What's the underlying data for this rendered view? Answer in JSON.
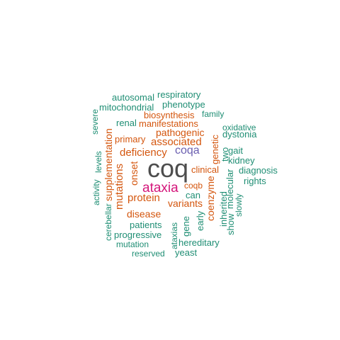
{
  "wordcloud": {
    "colors": {
      "gray": "#4d4d4d",
      "pink": "#d4157a",
      "purple": "#6b5fb0",
      "orange": "#d4560e",
      "teal": "#1f8e74"
    },
    "words": [
      {
        "text": "coq",
        "color": "gray",
        "orientation": "horizontal"
      },
      {
        "text": "ataxia",
        "color": "pink",
        "orientation": "horizontal"
      },
      {
        "text": "coqa",
        "color": "purple",
        "orientation": "horizontal"
      },
      {
        "text": "associated",
        "color": "orange",
        "orientation": "horizontal"
      },
      {
        "text": "deficiency",
        "color": "orange",
        "orientation": "horizontal"
      },
      {
        "text": "pathogenic",
        "color": "orange",
        "orientation": "horizontal"
      },
      {
        "text": "manifestations",
        "color": "orange",
        "orientation": "horizontal"
      },
      {
        "text": "biosynthesis",
        "color": "orange",
        "orientation": "horizontal"
      },
      {
        "text": "primary",
        "color": "orange",
        "orientation": "horizontal"
      },
      {
        "text": "protein",
        "color": "orange",
        "orientation": "horizontal"
      },
      {
        "text": "variants",
        "color": "orange",
        "orientation": "horizontal"
      },
      {
        "text": "disease",
        "color": "orange",
        "orientation": "horizontal"
      },
      {
        "text": "clinical",
        "color": "orange",
        "orientation": "horizontal"
      },
      {
        "text": "coqb",
        "color": "orange",
        "orientation": "horizontal"
      },
      {
        "text": "supplementation",
        "color": "orange",
        "orientation": "vertical"
      },
      {
        "text": "mutations",
        "color": "orange",
        "orientation": "vertical"
      },
      {
        "text": "onset",
        "color": "orange",
        "orientation": "vertical"
      },
      {
        "text": "genetic",
        "color": "orange",
        "orientation": "vertical"
      },
      {
        "text": "coenzyme",
        "color": "orange",
        "orientation": "vertical"
      },
      {
        "text": "autosomal",
        "color": "teal",
        "orientation": "horizontal"
      },
      {
        "text": "respiratory",
        "color": "teal",
        "orientation": "horizontal"
      },
      {
        "text": "mitochondrial",
        "color": "teal",
        "orientation": "horizontal"
      },
      {
        "text": "phenotype",
        "color": "teal",
        "orientation": "horizontal"
      },
      {
        "text": "family",
        "color": "teal",
        "orientation": "horizontal"
      },
      {
        "text": "renal",
        "color": "teal",
        "orientation": "horizontal"
      },
      {
        "text": "oxidative",
        "color": "teal",
        "orientation": "horizontal"
      },
      {
        "text": "dystonia",
        "color": "teal",
        "orientation": "horizontal"
      },
      {
        "text": "gait",
        "color": "teal",
        "orientation": "horizontal"
      },
      {
        "text": "kidney",
        "color": "teal",
        "orientation": "horizontal"
      },
      {
        "text": "diagnosis",
        "color": "teal",
        "orientation": "horizontal"
      },
      {
        "text": "rights",
        "color": "teal",
        "orientation": "horizontal"
      },
      {
        "text": "can",
        "color": "teal",
        "orientation": "horizontal"
      },
      {
        "text": "patients",
        "color": "teal",
        "orientation": "horizontal"
      },
      {
        "text": "progressive",
        "color": "teal",
        "orientation": "horizontal"
      },
      {
        "text": "mutation",
        "color": "teal",
        "orientation": "horizontal"
      },
      {
        "text": "reserved",
        "color": "teal",
        "orientation": "horizontal"
      },
      {
        "text": "hereditary",
        "color": "teal",
        "orientation": "horizontal"
      },
      {
        "text": "yeast",
        "color": "teal",
        "orientation": "horizontal"
      },
      {
        "text": "severe",
        "color": "teal",
        "orientation": "vertical"
      },
      {
        "text": "levels",
        "color": "teal",
        "orientation": "vertical"
      },
      {
        "text": "activity",
        "color": "teal",
        "orientation": "vertical"
      },
      {
        "text": "cerebellar",
        "color": "teal",
        "orientation": "vertical"
      },
      {
        "text": "two",
        "color": "teal",
        "orientation": "vertical"
      },
      {
        "text": "molecular",
        "color": "teal",
        "orientation": "vertical"
      },
      {
        "text": "inherited",
        "color": "teal",
        "orientation": "vertical"
      },
      {
        "text": "show",
        "color": "teal",
        "orientation": "vertical"
      },
      {
        "text": "slowly",
        "color": "teal",
        "orientation": "vertical"
      },
      {
        "text": "early",
        "color": "teal",
        "orientation": "vertical"
      },
      {
        "text": "gene",
        "color": "teal",
        "orientation": "vertical"
      },
      {
        "text": "ataxias",
        "color": "teal",
        "orientation": "vertical"
      }
    ]
  }
}
